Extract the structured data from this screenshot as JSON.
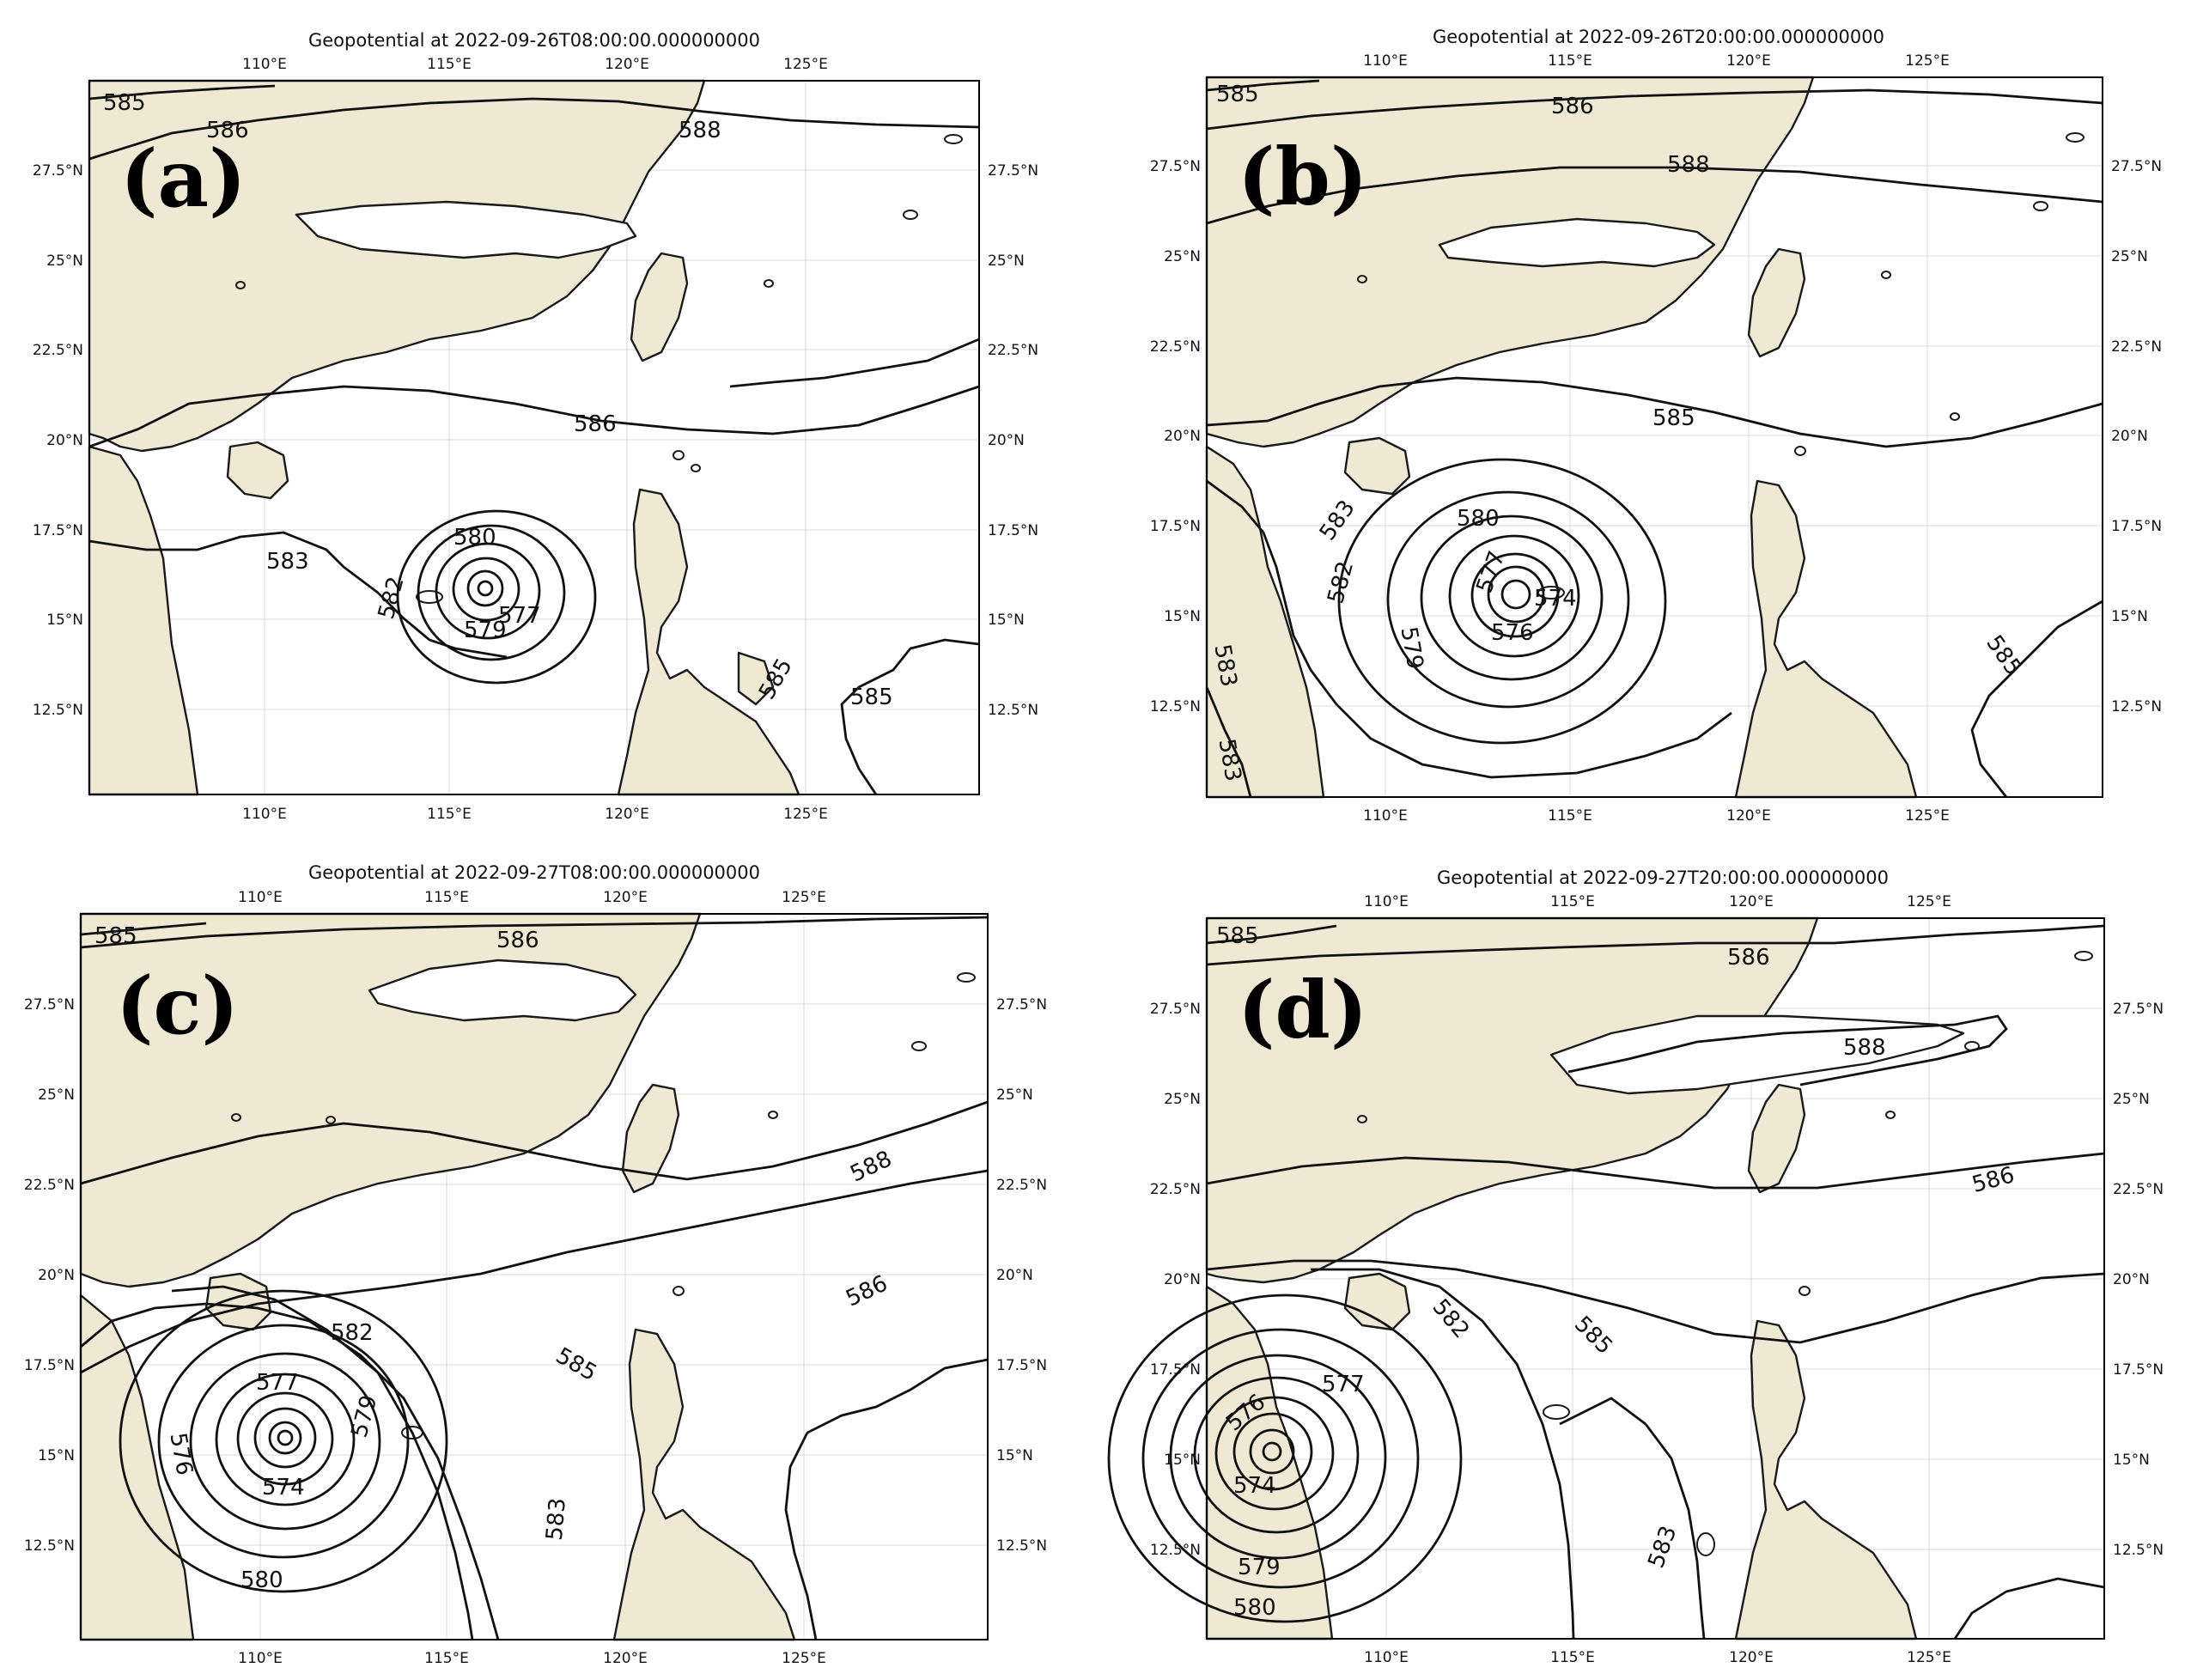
{
  "panels": [
    {
      "id": "a",
      "label": "(a)",
      "title": "Geopotential at 2022-09-26T08:00:00.000000000",
      "x_ticks": [
        "110°E",
        "115°E",
        "120°E",
        "125°E"
      ],
      "y_ticks": [
        "27.5°N",
        "25°N",
        "22.5°N",
        "20°N",
        "17.5°N",
        "15°N",
        "12.5°N"
      ],
      "contour_labels": [
        "585",
        "586",
        "588",
        "586",
        "583",
        "580",
        "582",
        "577",
        "579",
        "585",
        "585"
      ]
    },
    {
      "id": "b",
      "label": "(b)",
      "title": "Geopotential at 2022-09-26T20:00:00.000000000",
      "x_ticks": [
        "110°E",
        "115°E",
        "120°E",
        "125°E"
      ],
      "y_ticks": [
        "27.5°N",
        "25°N",
        "22.5°N",
        "20°N",
        "17.5°N",
        "15°N",
        "12.5°N"
      ],
      "contour_labels": [
        "585",
        "586",
        "588",
        "585",
        "583",
        "580",
        "582",
        "579",
        "577",
        "576",
        "574",
        "583",
        "583",
        "585"
      ]
    },
    {
      "id": "c",
      "label": "(c)",
      "title": "Geopotential at 2022-09-27T08:00:00.000000000",
      "x_ticks": [
        "110°E",
        "115°E",
        "120°E",
        "125°E"
      ],
      "y_ticks": [
        "27.5°N",
        "25°N",
        "22.5°N",
        "20°N",
        "17.5°N",
        "15°N",
        "12.5°N"
      ],
      "contour_labels": [
        "585",
        "586",
        "588",
        "586",
        "582",
        "585",
        "577",
        "579",
        "576",
        "574",
        "583",
        "580"
      ]
    },
    {
      "id": "d",
      "label": "(d)",
      "title": "Geopotential at 2022-09-27T20:00:00.000000000",
      "x_ticks": [
        "110°E",
        "115°E",
        "120°E",
        "125°E"
      ],
      "y_ticks": [
        "27.5°N",
        "25°N",
        "22.5°N",
        "20°N",
        "17.5°N",
        "15°N",
        "12.5°N"
      ],
      "contour_labels": [
        "585",
        "586",
        "588",
        "586",
        "582",
        "585",
        "577",
        "576",
        "574",
        "579",
        "580",
        "583"
      ]
    }
  ],
  "colors": {
    "land": "#efe9d3",
    "ocean": "#ffffff",
    "contour": "#111111"
  }
}
